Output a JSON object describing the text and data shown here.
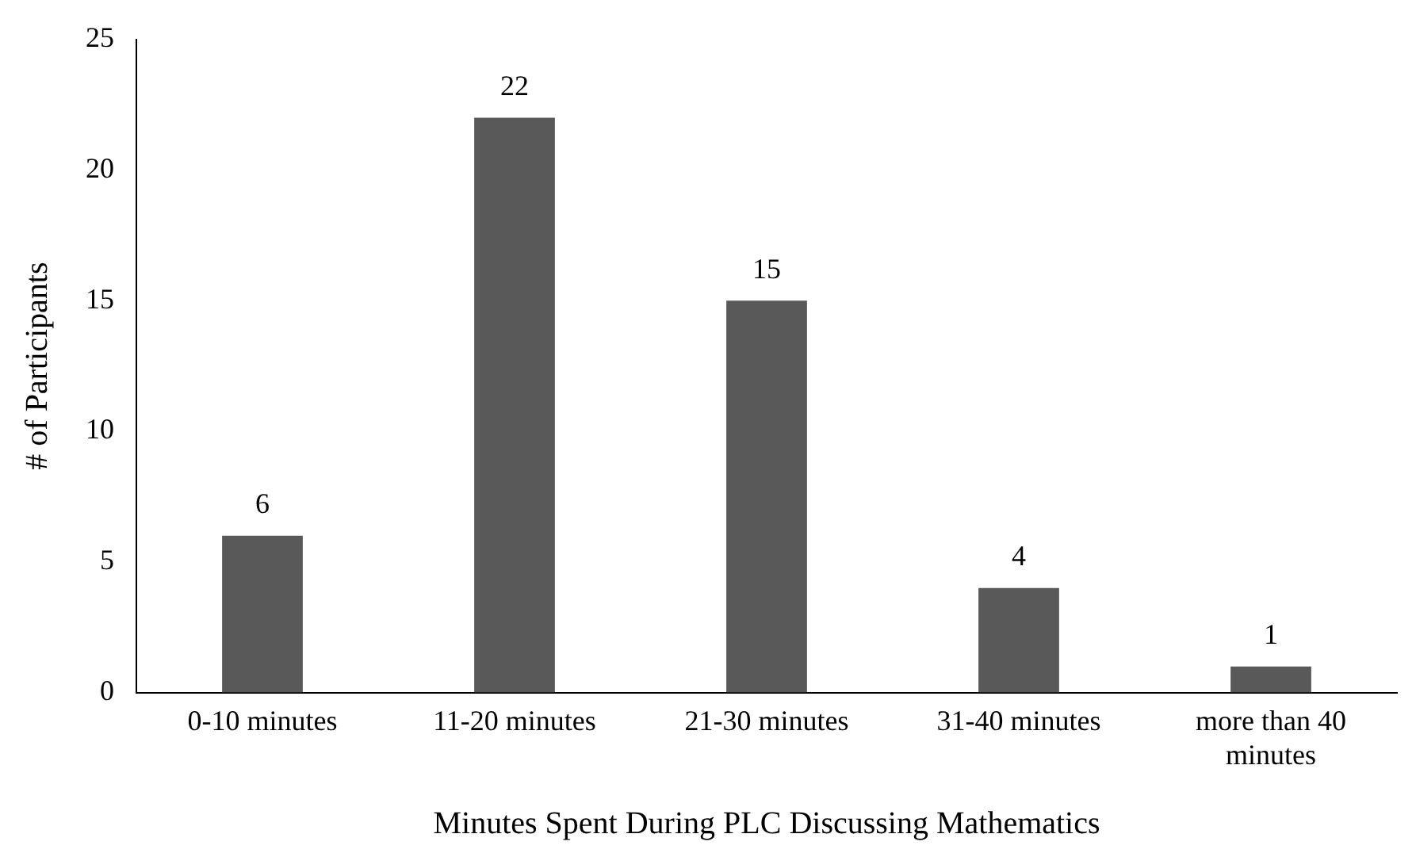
{
  "chart_data": {
    "type": "bar",
    "xlabel": "Minutes Spent During PLC Discussing Mathematics",
    "ylabel": "# of Participants",
    "categories": [
      "0-10 minutes",
      "11-20 minutes",
      "21-30 minutes",
      "31-40 minutes",
      "more than 40 minutes"
    ],
    "values": [
      6,
      22,
      15,
      4,
      1
    ],
    "color": "#595959",
    "ylim": [
      0,
      25
    ],
    "yticks": [
      0,
      5,
      10,
      15,
      20,
      25
    ],
    "grid": false,
    "legend": false,
    "data_labels": true
  }
}
